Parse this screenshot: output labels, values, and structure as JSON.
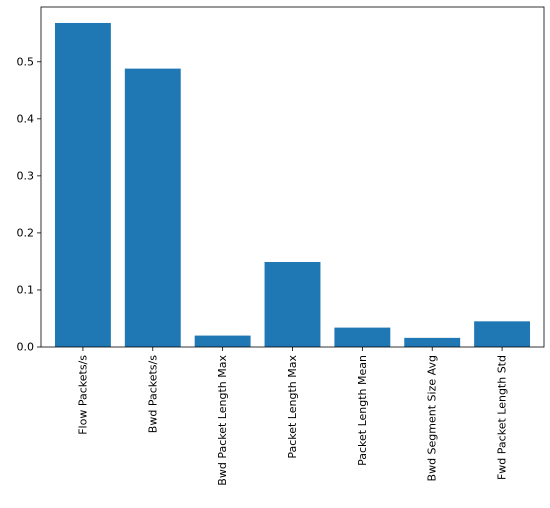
{
  "chart_data": {
    "type": "bar",
    "title": "",
    "xlabel": "",
    "ylabel": "",
    "categories": [
      "Flow Packets/s",
      "Bwd Packets/s",
      "Bwd Packet Length Max",
      "Packet Length Max",
      "Packet Length Mean",
      "Bwd Segment Size Avg",
      "Fwd Packet Length Std"
    ],
    "values": [
      0.568,
      0.488,
      0.02,
      0.149,
      0.034,
      0.016,
      0.045
    ],
    "ylim": [
      0,
      0.596
    ],
    "yticks": [
      0.0,
      0.1,
      0.2,
      0.3,
      0.4,
      0.5
    ],
    "ytick_labels": [
      "0.0",
      "0.1",
      "0.2",
      "0.3",
      "0.4",
      "0.5"
    ],
    "grid": false,
    "legend": "none",
    "bar_color": "#1f77b4"
  }
}
